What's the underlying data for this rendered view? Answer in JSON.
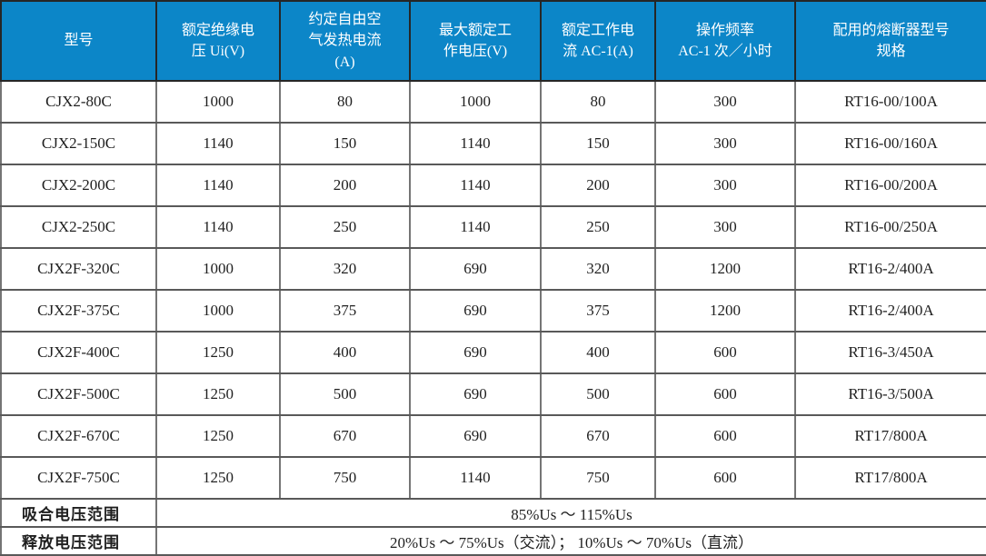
{
  "colors": {
    "header_bg": "#0c86c8",
    "header_text": "#ffffff",
    "grid_line": "#757575"
  },
  "table": {
    "columns": [
      "型号",
      "额定绝缘电\n压 Ui(V)",
      "约定自由空\n气发热电流\n(A)",
      "最大额定工\n作电压(V)",
      "额定工作电\n流 AC-1(A)",
      "操作频率\nAC-1 次／小时",
      "配用的熔断器型号\n规格"
    ],
    "rows": [
      [
        "CJX2-80C",
        "1000",
        "80",
        "1000",
        "80",
        "300",
        "RT16-00/100A"
      ],
      [
        "CJX2-150C",
        "1140",
        "150",
        "1140",
        "150",
        "300",
        "RT16-00/160A"
      ],
      [
        "CJX2-200C",
        "1140",
        "200",
        "1140",
        "200",
        "300",
        "RT16-00/200A"
      ],
      [
        "CJX2-250C",
        "1140",
        "250",
        "1140",
        "250",
        "300",
        "RT16-00/250A"
      ],
      [
        "CJX2F-320C",
        "1000",
        "320",
        "690",
        "320",
        "1200",
        "RT16-2/400A"
      ],
      [
        "CJX2F-375C",
        "1000",
        "375",
        "690",
        "375",
        "1200",
        "RT16-2/400A"
      ],
      [
        "CJX2F-400C",
        "1250",
        "400",
        "690",
        "400",
        "600",
        "RT16-3/450A"
      ],
      [
        "CJX2F-500C",
        "1250",
        "500",
        "690",
        "500",
        "600",
        "RT16-3/500A"
      ],
      [
        "CJX2F-670C",
        "1250",
        "670",
        "690",
        "670",
        "600",
        "RT17/800A"
      ],
      [
        "CJX2F-750C",
        "1250",
        "750",
        "1140",
        "750",
        "600",
        "RT17/800A"
      ]
    ],
    "footer_rows": [
      {
        "label": "吸合电压范围",
        "value": "85%Us ～ 115%Us"
      },
      {
        "label": "释放电压范围",
        "value": "20%Us ～ 75%Us（交流）； 10%Us ～ 70%Us（直流）"
      }
    ]
  }
}
